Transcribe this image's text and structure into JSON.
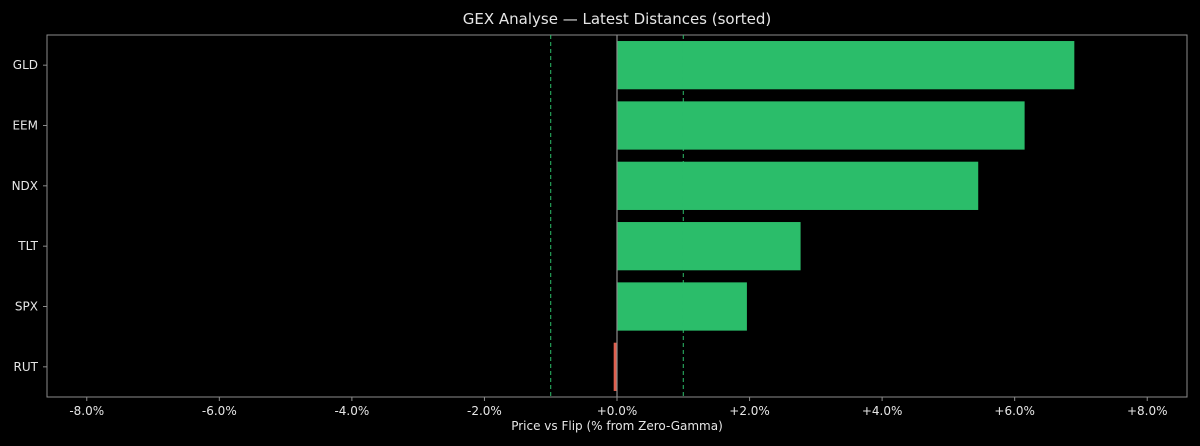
{
  "chart_data": {
    "type": "bar",
    "orientation": "horizontal",
    "title": "GEX Analyse — Latest Distances (sorted)",
    "xlabel": "Price vs Flip (% from Zero-Gamma)",
    "ylabel": "",
    "xlim": [
      -8.6,
      8.6
    ],
    "xticks": [
      -8,
      -6,
      -4,
      -2,
      0,
      2,
      4,
      6,
      8
    ],
    "xtick_labels": [
      "-8.0%",
      "-6.0%",
      "-4.0%",
      "-2.0%",
      "+0.0%",
      "+2.0%",
      "+4.0%",
      "+6.0%",
      "+8.0%"
    ],
    "categories": [
      "GLD",
      "EEM",
      "NDX",
      "TLT",
      "SPX",
      "RUT"
    ],
    "values": [
      6.9,
      6.15,
      5.45,
      2.77,
      1.96,
      -0.05
    ],
    "reference_lines": [
      -1.0,
      0.0,
      1.0
    ],
    "grid": false,
    "colors": {
      "background": "#000000",
      "positive": "#2bbd6a",
      "negative": "#e0604f",
      "reference_dashed": "#2bbd6a",
      "zero_line": "#8c8c8c",
      "axis": "#8c8c8c",
      "text": "#e6e6e6"
    }
  }
}
